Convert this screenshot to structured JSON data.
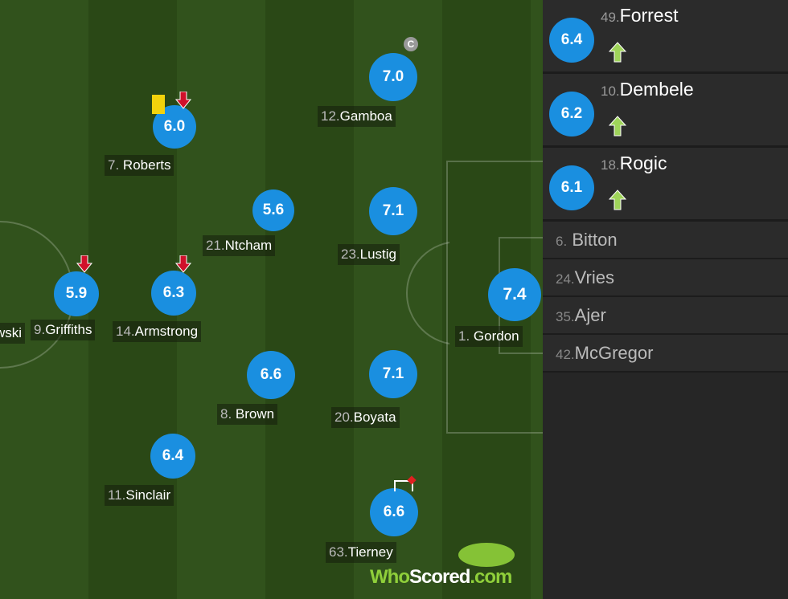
{
  "players": [
    {
      "num": "12.",
      "name": "Gamboa",
      "rating": "7.0",
      "captain": "C"
    },
    {
      "num": "7.",
      "name": "Roberts",
      "rating": "6.0"
    },
    {
      "num": "21.",
      "name": "Ntcham",
      "rating": "5.6"
    },
    {
      "num": "23.",
      "name": "Lustig",
      "rating": "7.1"
    },
    {
      "num": "9.",
      "name": "Griffiths",
      "rating": "5.9"
    },
    {
      "num": "14.",
      "name": "Armstrong",
      "rating": "6.3"
    },
    {
      "num": "1.",
      "name": "Gordon",
      "rating": "7.4"
    },
    {
      "num": "8.",
      "name": "Brown",
      "rating": "6.6"
    },
    {
      "num": "20.",
      "name": "Boyata",
      "rating": "7.1"
    },
    {
      "num": "11.",
      "name": "Sinclair",
      "rating": "6.4"
    },
    {
      "num": "63.",
      "name": "Tierney",
      "rating": "6.6"
    },
    {
      "name": "wski"
    }
  ],
  "subs": [
    {
      "num": "49.",
      "name": "Forrest",
      "rating": "6.4"
    },
    {
      "num": "10.",
      "name": "Dembele",
      "rating": "6.2"
    },
    {
      "num": "18.",
      "name": "Rogic",
      "rating": "6.1"
    }
  ],
  "bench": [
    {
      "num": "6.",
      "name": "Bitton"
    },
    {
      "num": "24.",
      "name": "Vries"
    },
    {
      "num": "35.",
      "name": "Ajer"
    },
    {
      "num": "42.",
      "name": "McGregor"
    }
  ],
  "logo": {
    "part1": "Who",
    "part2": "Scored",
    "part3": ".com"
  },
  "colors": {
    "rating": "#1a8fe0",
    "sub_on": "#9fd45a",
    "sub_off": "#d0102a",
    "yellow_card": "#f2d20c"
  }
}
